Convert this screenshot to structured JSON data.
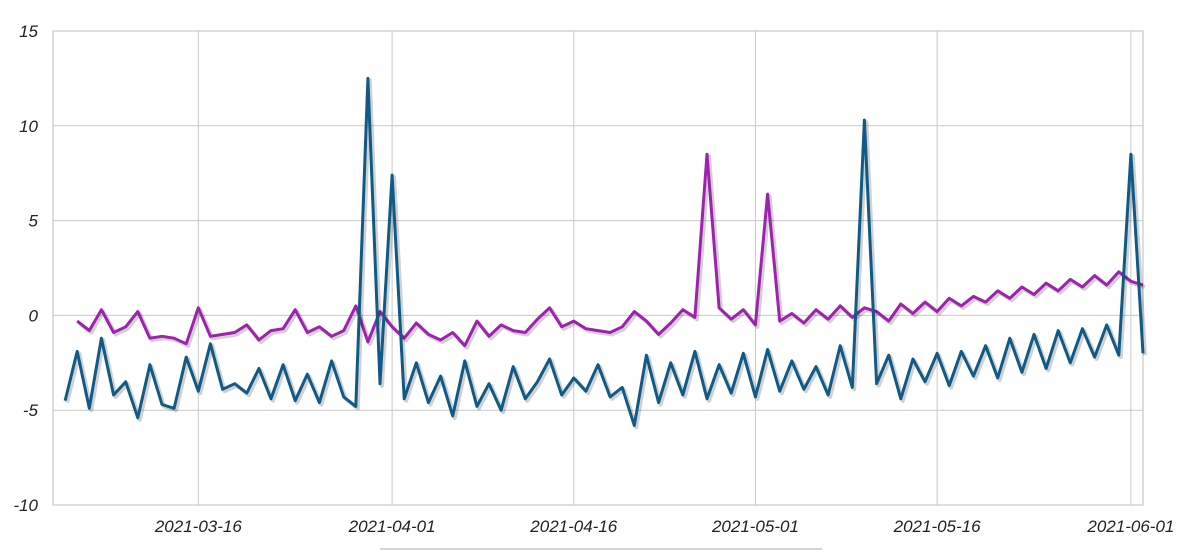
{
  "chart_data": {
    "type": "line",
    "title": "",
    "xlabel": "",
    "ylabel": "",
    "xlim": [
      "2021-03-04",
      "2021-06-02"
    ],
    "ylim": [
      -10,
      15
    ],
    "grid": true,
    "y_ticks": [
      {
        "value": 15,
        "label": "15"
      },
      {
        "value": 10,
        "label": "10"
      },
      {
        "value": 5,
        "label": "5"
      },
      {
        "value": 0,
        "label": "0"
      },
      {
        "value": -5,
        "label": "-5"
      },
      {
        "value": -10,
        "label": "-10"
      }
    ],
    "x_ticks": [
      {
        "value": "2021-03-16",
        "label": "2021-03-16"
      },
      {
        "value": "2021-04-01",
        "label": "2021-04-01"
      },
      {
        "value": "2021-04-16",
        "label": "2021-04-16"
      },
      {
        "value": "2021-05-01",
        "label": "2021-05-01"
      },
      {
        "value": "2021-05-16",
        "label": "2021-05-16"
      },
      {
        "value": "2021-06-01",
        "label": "2021-06-01"
      }
    ],
    "series": [
      {
        "color": "#a020b0",
        "points": [
          [
            "2021-03-06",
            -0.3
          ],
          [
            "2021-03-07",
            -0.8
          ],
          [
            "2021-03-08",
            0.3
          ],
          [
            "2021-03-09",
            -0.9
          ],
          [
            "2021-03-10",
            -0.6
          ],
          [
            "2021-03-11",
            0.2
          ],
          [
            "2021-03-12",
            -1.2
          ],
          [
            "2021-03-13",
            -1.1
          ],
          [
            "2021-03-14",
            -1.2
          ],
          [
            "2021-03-15",
            -1.5
          ],
          [
            "2021-03-16",
            0.4
          ],
          [
            "2021-03-17",
            -1.1
          ],
          [
            "2021-03-18",
            -1.0
          ],
          [
            "2021-03-19",
            -0.9
          ],
          [
            "2021-03-20",
            -0.5
          ],
          [
            "2021-03-21",
            -1.3
          ],
          [
            "2021-03-22",
            -0.8
          ],
          [
            "2021-03-23",
            -0.7
          ],
          [
            "2021-03-24",
            0.3
          ],
          [
            "2021-03-25",
            -0.9
          ],
          [
            "2021-03-26",
            -0.6
          ],
          [
            "2021-03-27",
            -1.1
          ],
          [
            "2021-03-28",
            -0.8
          ],
          [
            "2021-03-29",
            0.5
          ],
          [
            "2021-03-30",
            -1.4
          ],
          [
            "2021-03-31",
            0.2
          ],
          [
            "2021-04-01",
            -0.6
          ],
          [
            "2021-04-02",
            -1.2
          ],
          [
            "2021-04-03",
            -0.4
          ],
          [
            "2021-04-04",
            -1.0
          ],
          [
            "2021-04-05",
            -1.3
          ],
          [
            "2021-04-06",
            -0.9
          ],
          [
            "2021-04-07",
            -1.6
          ],
          [
            "2021-04-08",
            -0.3
          ],
          [
            "2021-04-09",
            -1.1
          ],
          [
            "2021-04-10",
            -0.5
          ],
          [
            "2021-04-11",
            -0.8
          ],
          [
            "2021-04-12",
            -0.9
          ],
          [
            "2021-04-13",
            -0.2
          ],
          [
            "2021-04-14",
            0.4
          ],
          [
            "2021-04-15",
            -0.6
          ],
          [
            "2021-04-16",
            -0.3
          ],
          [
            "2021-04-17",
            -0.7
          ],
          [
            "2021-04-18",
            -0.8
          ],
          [
            "2021-04-19",
            -0.9
          ],
          [
            "2021-04-20",
            -0.6
          ],
          [
            "2021-04-21",
            0.2
          ],
          [
            "2021-04-22",
            -0.3
          ],
          [
            "2021-04-23",
            -1.0
          ],
          [
            "2021-04-24",
            -0.4
          ],
          [
            "2021-04-25",
            0.3
          ],
          [
            "2021-04-26",
            -0.1
          ],
          [
            "2021-04-27",
            8.5
          ],
          [
            "2021-04-28",
            0.4
          ],
          [
            "2021-04-29",
            -0.2
          ],
          [
            "2021-04-30",
            0.3
          ],
          [
            "2021-05-01",
            -0.5
          ],
          [
            "2021-05-02",
            6.4
          ],
          [
            "2021-05-03",
            -0.3
          ],
          [
            "2021-05-04",
            0.1
          ],
          [
            "2021-05-05",
            -0.4
          ],
          [
            "2021-05-06",
            0.3
          ],
          [
            "2021-05-07",
            -0.2
          ],
          [
            "2021-05-08",
            0.5
          ],
          [
            "2021-05-09",
            -0.1
          ],
          [
            "2021-05-10",
            0.4
          ],
          [
            "2021-05-11",
            0.2
          ],
          [
            "2021-05-12",
            -0.3
          ],
          [
            "2021-05-13",
            0.6
          ],
          [
            "2021-05-14",
            0.1
          ],
          [
            "2021-05-15",
            0.7
          ],
          [
            "2021-05-16",
            0.2
          ],
          [
            "2021-05-17",
            0.9
          ],
          [
            "2021-05-18",
            0.5
          ],
          [
            "2021-05-19",
            1.0
          ],
          [
            "2021-05-20",
            0.7
          ],
          [
            "2021-05-21",
            1.3
          ],
          [
            "2021-05-22",
            0.9
          ],
          [
            "2021-05-23",
            1.5
          ],
          [
            "2021-05-24",
            1.1
          ],
          [
            "2021-05-25",
            1.7
          ],
          [
            "2021-05-26",
            1.3
          ],
          [
            "2021-05-27",
            1.9
          ],
          [
            "2021-05-28",
            1.5
          ],
          [
            "2021-05-29",
            2.1
          ],
          [
            "2021-05-30",
            1.6
          ],
          [
            "2021-05-31",
            2.3
          ],
          [
            "2021-06-01",
            1.8
          ],
          [
            "2021-06-02",
            1.6
          ]
        ]
      },
      {
        "color": "#0f5a87",
        "points": [
          [
            "2021-03-05",
            -4.5
          ],
          [
            "2021-03-06",
            -1.9
          ],
          [
            "2021-03-07",
            -4.9
          ],
          [
            "2021-03-08",
            -1.2
          ],
          [
            "2021-03-09",
            -4.2
          ],
          [
            "2021-03-10",
            -3.5
          ],
          [
            "2021-03-11",
            -5.4
          ],
          [
            "2021-03-12",
            -2.6
          ],
          [
            "2021-03-13",
            -4.7
          ],
          [
            "2021-03-14",
            -4.9
          ],
          [
            "2021-03-15",
            -2.2
          ],
          [
            "2021-03-16",
            -4.0
          ],
          [
            "2021-03-17",
            -1.5
          ],
          [
            "2021-03-18",
            -3.9
          ],
          [
            "2021-03-19",
            -3.6
          ],
          [
            "2021-03-20",
            -4.1
          ],
          [
            "2021-03-21",
            -2.8
          ],
          [
            "2021-03-22",
            -4.4
          ],
          [
            "2021-03-23",
            -2.6
          ],
          [
            "2021-03-24",
            -4.5
          ],
          [
            "2021-03-25",
            -3.1
          ],
          [
            "2021-03-26",
            -4.6
          ],
          [
            "2021-03-27",
            -2.4
          ],
          [
            "2021-03-28",
            -4.3
          ],
          [
            "2021-03-29",
            -4.8
          ],
          [
            "2021-03-30",
            12.5
          ],
          [
            "2021-03-31",
            -3.6
          ],
          [
            "2021-04-01",
            7.4
          ],
          [
            "2021-04-02",
            -4.4
          ],
          [
            "2021-04-03",
            -2.5
          ],
          [
            "2021-04-04",
            -4.6
          ],
          [
            "2021-04-05",
            -3.2
          ],
          [
            "2021-04-06",
            -5.3
          ],
          [
            "2021-04-07",
            -2.4
          ],
          [
            "2021-04-08",
            -4.8
          ],
          [
            "2021-04-09",
            -3.6
          ],
          [
            "2021-04-10",
            -5.0
          ],
          [
            "2021-04-11",
            -2.7
          ],
          [
            "2021-04-12",
            -4.4
          ],
          [
            "2021-04-13",
            -3.5
          ],
          [
            "2021-04-14",
            -2.3
          ],
          [
            "2021-04-15",
            -4.2
          ],
          [
            "2021-04-16",
            -3.3
          ],
          [
            "2021-04-17",
            -4.0
          ],
          [
            "2021-04-18",
            -2.6
          ],
          [
            "2021-04-19",
            -4.3
          ],
          [
            "2021-04-20",
            -3.8
          ],
          [
            "2021-04-21",
            -5.8
          ],
          [
            "2021-04-22",
            -2.1
          ],
          [
            "2021-04-23",
            -4.6
          ],
          [
            "2021-04-24",
            -2.5
          ],
          [
            "2021-04-25",
            -4.2
          ],
          [
            "2021-04-26",
            -1.9
          ],
          [
            "2021-04-27",
            -4.4
          ],
          [
            "2021-04-28",
            -2.6
          ],
          [
            "2021-04-29",
            -4.1
          ],
          [
            "2021-04-30",
            -2.0
          ],
          [
            "2021-05-01",
            -4.3
          ],
          [
            "2021-05-02",
            -1.8
          ],
          [
            "2021-05-03",
            -4.0
          ],
          [
            "2021-05-04",
            -2.4
          ],
          [
            "2021-05-05",
            -3.9
          ],
          [
            "2021-05-06",
            -2.7
          ],
          [
            "2021-05-07",
            -4.2
          ],
          [
            "2021-05-08",
            -1.6
          ],
          [
            "2021-05-09",
            -3.8
          ],
          [
            "2021-05-10",
            10.3
          ],
          [
            "2021-05-11",
            -3.6
          ],
          [
            "2021-05-12",
            -2.1
          ],
          [
            "2021-05-13",
            -4.4
          ],
          [
            "2021-05-14",
            -2.3
          ],
          [
            "2021-05-15",
            -3.5
          ],
          [
            "2021-05-16",
            -2.0
          ],
          [
            "2021-05-17",
            -3.7
          ],
          [
            "2021-05-18",
            -1.9
          ],
          [
            "2021-05-19",
            -3.2
          ],
          [
            "2021-05-20",
            -1.6
          ],
          [
            "2021-05-21",
            -3.3
          ],
          [
            "2021-05-22",
            -1.2
          ],
          [
            "2021-05-23",
            -3.0
          ],
          [
            "2021-05-24",
            -1.0
          ],
          [
            "2021-05-25",
            -2.8
          ],
          [
            "2021-05-26",
            -0.8
          ],
          [
            "2021-05-27",
            -2.5
          ],
          [
            "2021-05-28",
            -0.7
          ],
          [
            "2021-05-29",
            -2.2
          ],
          [
            "2021-05-30",
            -0.5
          ],
          [
            "2021-05-31",
            -2.1
          ],
          [
            "2021-06-01",
            8.5
          ],
          [
            "2021-06-02",
            -2.0
          ]
        ]
      }
    ]
  }
}
